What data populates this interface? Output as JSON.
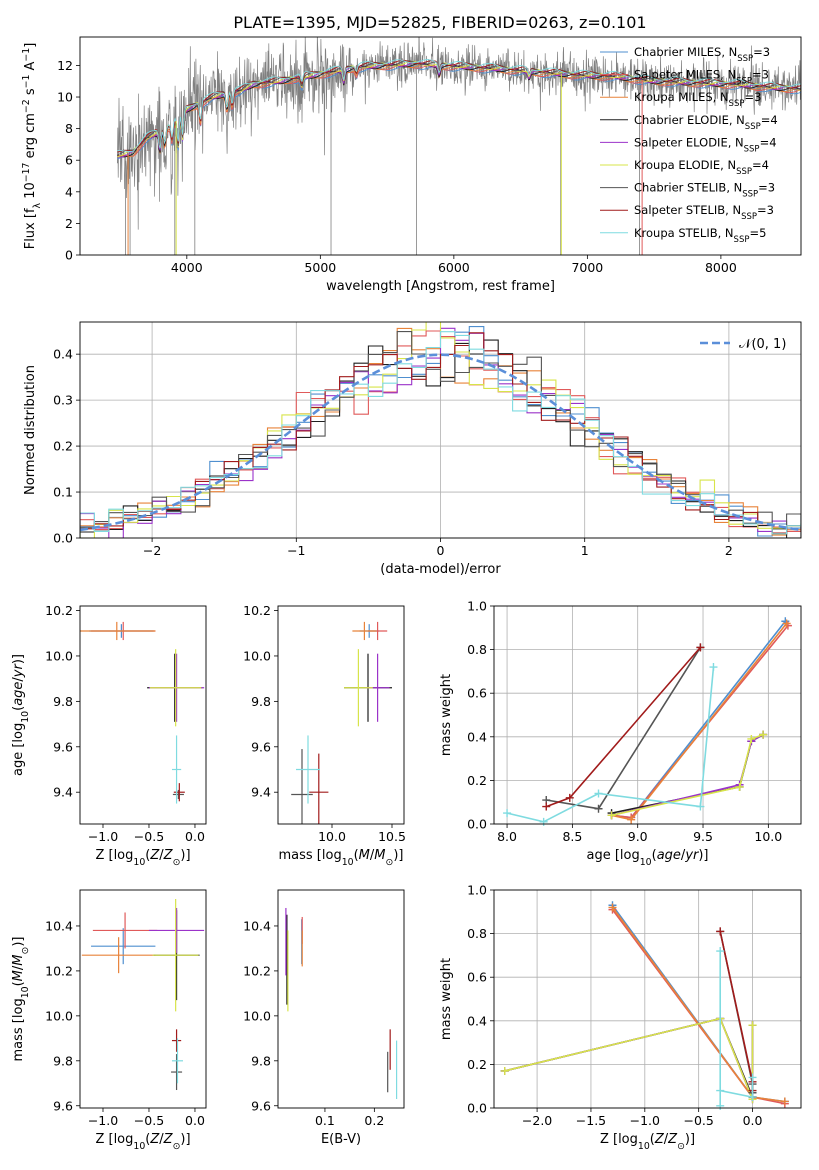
{
  "figure": {
    "title": "PLATE=1395, MJD=52825, FIBERID=0263, z=0.101"
  },
  "palette": {
    "Chabrier MILES": "#4f8fcf",
    "Salpeter MILES": "#e05a5a",
    "Kroupa MILES": "#e8833a",
    "Chabrier ELODIE": "#1f1f1f",
    "Salpeter ELODIE": "#9b33c9",
    "Kroupa ELODIE": "#d7e44a",
    "Chabrier STELIB": "#555555",
    "Salpeter STELIB": "#a11b1b",
    "Kroupa STELIB": "#7fdbe0",
    "normal_curve": "#5b8fd9",
    "data_spectrum": "#808080"
  },
  "chart_data": [
    {
      "id": "spectrum",
      "type": "line",
      "xlabel": "wavelength [Angstrom, rest frame]",
      "ylabel": "Flux [f_λ 10^-17 erg cm^-2 s^-1 A^-1]",
      "xlim": [
        3200,
        8600
      ],
      "ylim": [
        0,
        13.8
      ],
      "xticks": [
        4000,
        5000,
        6000,
        7000,
        8000
      ],
      "yticks": [
        0,
        2,
        4,
        6,
        8,
        10,
        12
      ],
      "grid": false,
      "legend_position": "right",
      "legend": [
        "Chabrier MILES, N_SSP=3",
        "Salpeter MILES, N_SSP=3",
        "Kroupa MILES, N_SSP=3",
        "Chabrier ELODIE, N_SSP=4",
        "Salpeter ELODIE, N_SSP=4",
        "Kroupa ELODIE, N_SSP=4",
        "Chabrier STELIB, N_SSP=3",
        "Salpeter STELIB, N_SSP=3",
        "Kroupa STELIB, N_SSP=5"
      ],
      "continuum_x": [
        3500,
        3600,
        3700,
        3800,
        3900,
        4000,
        4100,
        4200,
        4300,
        4400,
        4500,
        4700,
        4900,
        5100,
        5300,
        5500,
        5700,
        5900,
        6100,
        6300,
        6600,
        6900,
        7200,
        7500,
        7800,
        8100,
        8400,
        8600
      ],
      "continuum_y": [
        6.3,
        6.5,
        7.4,
        7.8,
        8.3,
        9.2,
        9.6,
        10.0,
        10.2,
        10.4,
        10.8,
        11.0,
        11.3,
        11.6,
        11.9,
        12.0,
        12.1,
        12.0,
        11.9,
        11.8,
        11.6,
        11.4,
        11.3,
        11.0,
        10.9,
        10.8,
        10.6,
        10.5
      ]
    },
    {
      "id": "residuals",
      "type": "histogram",
      "xlabel": "(data-model)/error",
      "ylabel": "Normed distribution",
      "xlim": [
        -2.5,
        2.5
      ],
      "ylim": [
        0,
        0.47
      ],
      "xticks": [
        -2,
        -1,
        0,
        1,
        2
      ],
      "yticks": [
        0.0,
        0.1,
        0.2,
        0.3,
        0.4
      ],
      "grid": true,
      "legend": [
        "𝒩(0, 1)"
      ],
      "legend_position": "top-right"
    },
    {
      "id": "age-vs-Z",
      "type": "errorbar",
      "xlabel": "Z [log10(Z/Z⊙)]",
      "ylabel": "age [log10(age/yr)]",
      "xlim": [
        -1.25,
        0.12
      ],
      "ylim": [
        9.26,
        10.22
      ],
      "xticks": [
        -1.0,
        -0.5,
        0.0
      ],
      "yticks": [
        9.4,
        9.6,
        9.8,
        10.0,
        10.2
      ],
      "points": [
        {
          "model": "Chabrier MILES",
          "x": -0.8,
          "y": 10.11,
          "xerr": 0.35,
          "yerr": 0.03
        },
        {
          "model": "Salpeter MILES",
          "x": -0.78,
          "y": 10.11,
          "xerr": 0.35,
          "yerr": 0.04
        },
        {
          "model": "Kroupa MILES",
          "x": -0.85,
          "y": 10.11,
          "xerr": 0.42,
          "yerr": 0.04
        },
        {
          "model": "Chabrier ELODIE",
          "x": -0.22,
          "y": 9.86,
          "xerr": 0.3,
          "yerr": 0.15
        },
        {
          "model": "Salpeter ELODIE",
          "x": -0.2,
          "y": 9.86,
          "xerr": 0.3,
          "yerr": 0.15
        },
        {
          "model": "Kroupa ELODIE",
          "x": -0.21,
          "y": 9.86,
          "xerr": 0.28,
          "yerr": 0.17
        },
        {
          "model": "Chabrier STELIB",
          "x": -0.18,
          "y": 9.39,
          "xerr": 0.06,
          "yerr": 0.02
        },
        {
          "model": "Salpeter STELIB",
          "x": -0.17,
          "y": 9.4,
          "xerr": 0.06,
          "yerr": 0.04
        },
        {
          "model": "Kroupa STELIB",
          "x": -0.2,
          "y": 9.5,
          "xerr": 0.05,
          "yerr": 0.15
        }
      ]
    },
    {
      "id": "age-vs-mass",
      "type": "errorbar",
      "xlabel": "mass [log10(M/M⊙)]",
      "ylabel": "",
      "xlim": [
        9.55,
        10.6
      ],
      "ylim": [
        9.26,
        10.22
      ],
      "xticks": [
        10.0,
        10.5
      ],
      "yticks": [
        9.4,
        9.6,
        9.8,
        10.0,
        10.2
      ],
      "points": [
        {
          "model": "Chabrier MILES",
          "x": 10.31,
          "y": 10.11,
          "xerr": 0.08,
          "yerr": 0.03
        },
        {
          "model": "Salpeter MILES",
          "x": 10.38,
          "y": 10.11,
          "xerr": 0.08,
          "yerr": 0.04
        },
        {
          "model": "Kroupa MILES",
          "x": 10.27,
          "y": 10.11,
          "xerr": 0.1,
          "yerr": 0.04
        },
        {
          "model": "Chabrier ELODIE",
          "x": 10.3,
          "y": 9.86,
          "xerr": 0.2,
          "yerr": 0.15
        },
        {
          "model": "Salpeter ELODIE",
          "x": 10.38,
          "y": 9.86,
          "xerr": 0.1,
          "yerr": 0.15
        },
        {
          "model": "Kroupa ELODIE",
          "x": 10.22,
          "y": 9.86,
          "xerr": 0.12,
          "yerr": 0.17
        },
        {
          "model": "Chabrier STELIB",
          "x": 9.75,
          "y": 9.39,
          "xerr": 0.09,
          "yerr": 0.2
        },
        {
          "model": "Salpeter STELIB",
          "x": 9.89,
          "y": 9.4,
          "xerr": 0.08,
          "yerr": 0.17
        },
        {
          "model": "Kroupa STELIB",
          "x": 9.8,
          "y": 9.5,
          "xerr": 0.1,
          "yerr": 0.15
        }
      ]
    },
    {
      "id": "weight-vs-age",
      "type": "line",
      "xlabel": "age [log10(age/yr)]",
      "ylabel": "mass weight",
      "xlim": [
        7.9,
        10.25
      ],
      "ylim": [
        0,
        1.0
      ],
      "xticks": [
        8.0,
        8.5,
        9.0,
        9.5,
        10.0
      ],
      "yticks": [
        0.0,
        0.2,
        0.4,
        0.6,
        0.8,
        1.0
      ],
      "grid": true,
      "series": [
        {
          "model": "Chabrier MILES",
          "x": [
            8.8,
            8.95,
            10.13
          ],
          "y": [
            0.04,
            0.03,
            0.93
          ]
        },
        {
          "model": "Salpeter MILES",
          "x": [
            8.8,
            8.95,
            10.15
          ],
          "y": [
            0.04,
            0.03,
            0.91
          ]
        },
        {
          "model": "Kroupa MILES",
          "x": [
            8.8,
            8.95,
            10.14
          ],
          "y": [
            0.04,
            0.02,
            0.92
          ]
        },
        {
          "model": "Chabrier ELODIE",
          "x": [
            8.8,
            9.78,
            9.87,
            9.96
          ],
          "y": [
            0.05,
            0.17,
            0.38,
            0.41
          ]
        },
        {
          "model": "Salpeter ELODIE",
          "x": [
            8.8,
            9.78,
            9.87,
            9.96
          ],
          "y": [
            0.04,
            0.18,
            0.38,
            0.41
          ]
        },
        {
          "model": "Kroupa ELODIE",
          "x": [
            8.8,
            9.78,
            9.87,
            9.96
          ],
          "y": [
            0.04,
            0.17,
            0.39,
            0.41
          ]
        },
        {
          "model": "Chabrier STELIB",
          "x": [
            8.3,
            8.7,
            9.48
          ],
          "y": [
            0.11,
            0.07,
            0.81
          ]
        },
        {
          "model": "Salpeter STELIB",
          "x": [
            8.3,
            8.48,
            9.48
          ],
          "y": [
            0.08,
            0.12,
            0.81
          ]
        },
        {
          "model": "Kroupa STELIB",
          "x": [
            8.0,
            8.28,
            8.7,
            9.48,
            9.58
          ],
          "y": [
            0.05,
            0.01,
            0.14,
            0.08,
            0.72
          ]
        }
      ]
    },
    {
      "id": "mass-vs-Z",
      "type": "errorbar",
      "xlabel": "Z [log10(Z/Z⊙)]",
      "ylabel": "mass [log10(M/M⊙)]",
      "xlim": [
        -1.25,
        0.12
      ],
      "ylim": [
        9.59,
        10.56
      ],
      "xticks": [
        -1.0,
        -0.5,
        0.0
      ],
      "yticks": [
        9.6,
        9.8,
        10.0,
        10.2,
        10.4
      ],
      "points": [
        {
          "model": "Chabrier MILES",
          "x": -0.78,
          "y": 10.31,
          "xerr": 0.35,
          "yerr": 0.08
        },
        {
          "model": "Salpeter MILES",
          "x": -0.76,
          "y": 10.38,
          "xerr": 0.35,
          "yerr": 0.08
        },
        {
          "model": "Kroupa MILES",
          "x": -0.83,
          "y": 10.27,
          "xerr": 0.4,
          "yerr": 0.08
        },
        {
          "model": "Chabrier ELODIE",
          "x": -0.2,
          "y": 10.27,
          "xerr": 0.25,
          "yerr": 0.2
        },
        {
          "model": "Salpeter ELODIE",
          "x": -0.2,
          "y": 10.38,
          "xerr": 0.3,
          "yerr": 0.1
        },
        {
          "model": "Kroupa ELODIE",
          "x": -0.21,
          "y": 10.27,
          "xerr": 0.25,
          "yerr": 0.25
        },
        {
          "model": "Chabrier STELIB",
          "x": -0.2,
          "y": 9.75,
          "xerr": 0.06,
          "yerr": 0.08
        },
        {
          "model": "Salpeter STELIB",
          "x": -0.2,
          "y": 9.89,
          "xerr": 0.05,
          "yerr": 0.05
        },
        {
          "model": "Kroupa STELIB",
          "x": -0.19,
          "y": 9.8,
          "xerr": 0.06,
          "yerr": 0.1
        }
      ]
    },
    {
      "id": "mass-vs-EBV",
      "type": "errorbar",
      "xlabel": "E(B-V)",
      "ylabel": "",
      "xlim": [
        0.005,
        0.26
      ],
      "ylim": [
        9.59,
        10.56
      ],
      "xticks": [
        0.1,
        0.2
      ],
      "yticks": [
        9.6,
        9.8,
        10.0,
        10.2,
        10.4
      ],
      "points": [
        {
          "model": "Chabrier MILES",
          "x": 0.053,
          "y": 10.33,
          "xerr": 0,
          "yerr": 0.1
        },
        {
          "model": "Salpeter MILES",
          "x": 0.054,
          "y": 10.38,
          "xerr": 0,
          "yerr": 0.06
        },
        {
          "model": "Kroupa MILES",
          "x": 0.054,
          "y": 10.3,
          "xerr": 0,
          "yerr": 0.08
        },
        {
          "model": "Chabrier ELODIE",
          "x": 0.023,
          "y": 10.25,
          "xerr": 0,
          "yerr": 0.2
        },
        {
          "model": "Salpeter ELODIE",
          "x": 0.021,
          "y": 10.33,
          "xerr": 0,
          "yerr": 0.15
        },
        {
          "model": "Kroupa ELODIE",
          "x": 0.025,
          "y": 10.2,
          "xerr": 0,
          "yerr": 0.18
        },
        {
          "model": "Chabrier STELIB",
          "x": 0.227,
          "y": 9.75,
          "xerr": 0,
          "yerr": 0.09
        },
        {
          "model": "Salpeter STELIB",
          "x": 0.232,
          "y": 9.85,
          "xerr": 0,
          "yerr": 0.09
        },
        {
          "model": "Kroupa STELIB",
          "x": 0.245,
          "y": 9.76,
          "xerr": 0,
          "yerr": 0.13
        }
      ]
    },
    {
      "id": "weight-vs-Z",
      "type": "line",
      "xlabel": "Z [log10(Z/Z⊙)]",
      "ylabel": "mass weight",
      "xlim": [
        -2.4,
        0.45
      ],
      "ylim": [
        0,
        1.0
      ],
      "xticks": [
        -2.0,
        -1.5,
        -1.0,
        -0.5,
        0.0
      ],
      "yticks": [
        0.0,
        0.2,
        0.4,
        0.6,
        0.8,
        1.0
      ],
      "grid": true,
      "series": [
        {
          "model": "Chabrier MILES",
          "x": [
            -1.3,
            0.0,
            0.3
          ],
          "y": [
            0.93,
            0.05,
            0.03
          ]
        },
        {
          "model": "Salpeter MILES",
          "x": [
            -1.3,
            0.0,
            0.3
          ],
          "y": [
            0.91,
            0.05,
            0.02
          ]
        },
        {
          "model": "Kroupa MILES",
          "x": [
            -1.3,
            0.0,
            0.3
          ],
          "y": [
            0.92,
            0.05,
            0.03
          ]
        },
        {
          "model": "Chabrier ELODIE",
          "x": [
            -2.3,
            -0.3,
            0.0,
            0.0
          ],
          "y": [
            0.17,
            0.41,
            0.05,
            0.38
          ]
        },
        {
          "model": "Salpeter ELODIE",
          "x": [
            -2.3,
            -0.3,
            0.0,
            0.0
          ],
          "y": [
            0.17,
            0.41,
            0.04,
            0.38
          ]
        },
        {
          "model": "Kroupa ELODIE",
          "x": [
            -2.3,
            -0.3,
            0.0,
            0.0
          ],
          "y": [
            0.17,
            0.41,
            0.04,
            0.38
          ]
        },
        {
          "model": "Chabrier STELIB",
          "x": [
            -0.3,
            0.0,
            0.0
          ],
          "y": [
            0.81,
            0.11,
            0.07
          ]
        },
        {
          "model": "Salpeter STELIB",
          "x": [
            -0.3,
            0.0,
            0.0
          ],
          "y": [
            0.81,
            0.12,
            0.08
          ]
        },
        {
          "model": "Kroupa STELIB",
          "x": [
            -0.3,
            -0.3,
            -0.3,
            0.0,
            0.0
          ],
          "y": [
            0.72,
            0.01,
            0.08,
            0.05,
            0.14
          ]
        }
      ]
    }
  ]
}
